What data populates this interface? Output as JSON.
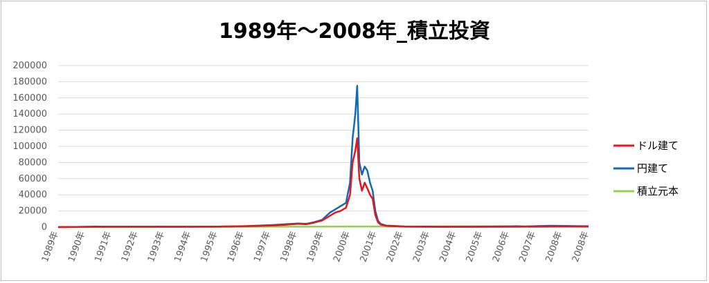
{
  "chart_data": {
    "type": "line",
    "title": "1989年～2008年_積立投資",
    "xlabel": "",
    "ylabel": "",
    "ylim": [
      0,
      200000
    ],
    "y_ticks": [
      0,
      20000,
      40000,
      60000,
      80000,
      100000,
      120000,
      140000,
      160000,
      180000,
      200000
    ],
    "x_tick_labels": [
      "1989年",
      "1990年",
      "1991年",
      "1992年",
      "1993年",
      "1994年",
      "1995年",
      "1996年",
      "1997年",
      "1998年",
      "1999年",
      "2000年",
      "2001年",
      "2002年",
      "2003年",
      "2004年",
      "2005年",
      "2006年",
      "2007年",
      "2008年",
      "2008年"
    ],
    "grid": true,
    "legend_position": "right",
    "series": [
      {
        "name": "ドル建て",
        "color": "#e8141b",
        "points": [
          [
            1989.0,
            0
          ],
          [
            1990.0,
            300
          ],
          [
            1991.0,
            400
          ],
          [
            1992.0,
            400
          ],
          [
            1993.0,
            400
          ],
          [
            1994.0,
            400
          ],
          [
            1995.0,
            500
          ],
          [
            1995.5,
            800
          ],
          [
            1996.0,
            1000
          ],
          [
            1996.5,
            1500
          ],
          [
            1997.0,
            2000
          ],
          [
            1997.5,
            2800
          ],
          [
            1998.0,
            4000
          ],
          [
            1998.3,
            3500
          ],
          [
            1998.6,
            5500
          ],
          [
            1998.9,
            8000
          ],
          [
            1999.0,
            10000
          ],
          [
            1999.2,
            14000
          ],
          [
            1999.4,
            18000
          ],
          [
            1999.6,
            20000
          ],
          [
            1999.8,
            24000
          ],
          [
            1999.95,
            40000
          ],
          [
            2000.05,
            80000
          ],
          [
            2000.15,
            95000
          ],
          [
            2000.22,
            110000
          ],
          [
            2000.3,
            60000
          ],
          [
            2000.4,
            45000
          ],
          [
            2000.5,
            55000
          ],
          [
            2000.6,
            48000
          ],
          [
            2000.7,
            40000
          ],
          [
            2000.8,
            35000
          ],
          [
            2000.9,
            15000
          ],
          [
            2001.0,
            6000
          ],
          [
            2001.1,
            3000
          ],
          [
            2001.3,
            1500
          ],
          [
            2001.6,
            1000
          ],
          [
            2002.0,
            500
          ],
          [
            2003.0,
            300
          ],
          [
            2004.0,
            300
          ],
          [
            2005.0,
            300
          ],
          [
            2006.0,
            400
          ],
          [
            2007.0,
            500
          ],
          [
            2008.0,
            600
          ],
          [
            2008.9,
            500
          ]
        ]
      },
      {
        "name": "円建て",
        "color": "#1069b6",
        "points": [
          [
            1989.0,
            0
          ],
          [
            1990.0,
            300
          ],
          [
            1990.4,
            800
          ],
          [
            1990.6,
            500
          ],
          [
            1991.0,
            500
          ],
          [
            1992.0,
            500
          ],
          [
            1993.0,
            500
          ],
          [
            1994.0,
            500
          ],
          [
            1995.0,
            600
          ],
          [
            1995.5,
            900
          ],
          [
            1996.0,
            1200
          ],
          [
            1996.5,
            1800
          ],
          [
            1997.0,
            2500
          ],
          [
            1997.5,
            3500
          ],
          [
            1998.0,
            4500
          ],
          [
            1998.3,
            4000
          ],
          [
            1998.6,
            6000
          ],
          [
            1998.9,
            9000
          ],
          [
            1999.0,
            12000
          ],
          [
            1999.2,
            18000
          ],
          [
            1999.4,
            22000
          ],
          [
            1999.6,
            26000
          ],
          [
            1999.8,
            30000
          ],
          [
            1999.95,
            55000
          ],
          [
            2000.05,
            110000
          ],
          [
            2000.15,
            140000
          ],
          [
            2000.22,
            175000
          ],
          [
            2000.3,
            80000
          ],
          [
            2000.4,
            65000
          ],
          [
            2000.5,
            75000
          ],
          [
            2000.6,
            70000
          ],
          [
            2000.7,
            55000
          ],
          [
            2000.8,
            45000
          ],
          [
            2000.9,
            20000
          ],
          [
            2001.0,
            8000
          ],
          [
            2001.1,
            4000
          ],
          [
            2001.3,
            2000
          ],
          [
            2001.6,
            1500
          ],
          [
            2002.0,
            800
          ],
          [
            2003.0,
            600
          ],
          [
            2004.0,
            500
          ],
          [
            2005.0,
            600
          ],
          [
            2006.0,
            900
          ],
          [
            2006.2,
            1200
          ],
          [
            2006.5,
            700
          ],
          [
            2007.0,
            1300
          ],
          [
            2007.5,
            1700
          ],
          [
            2008.0,
            1500
          ],
          [
            2008.5,
            1200
          ],
          [
            2008.9,
            1000
          ]
        ]
      },
      {
        "name": "積立元本",
        "color": "#92d050",
        "points": [
          [
            1989.0,
            0
          ],
          [
            1995.0,
            300
          ],
          [
            2000.0,
            600
          ],
          [
            2005.0,
            900
          ],
          [
            2008.9,
            1200
          ]
        ]
      }
    ]
  }
}
